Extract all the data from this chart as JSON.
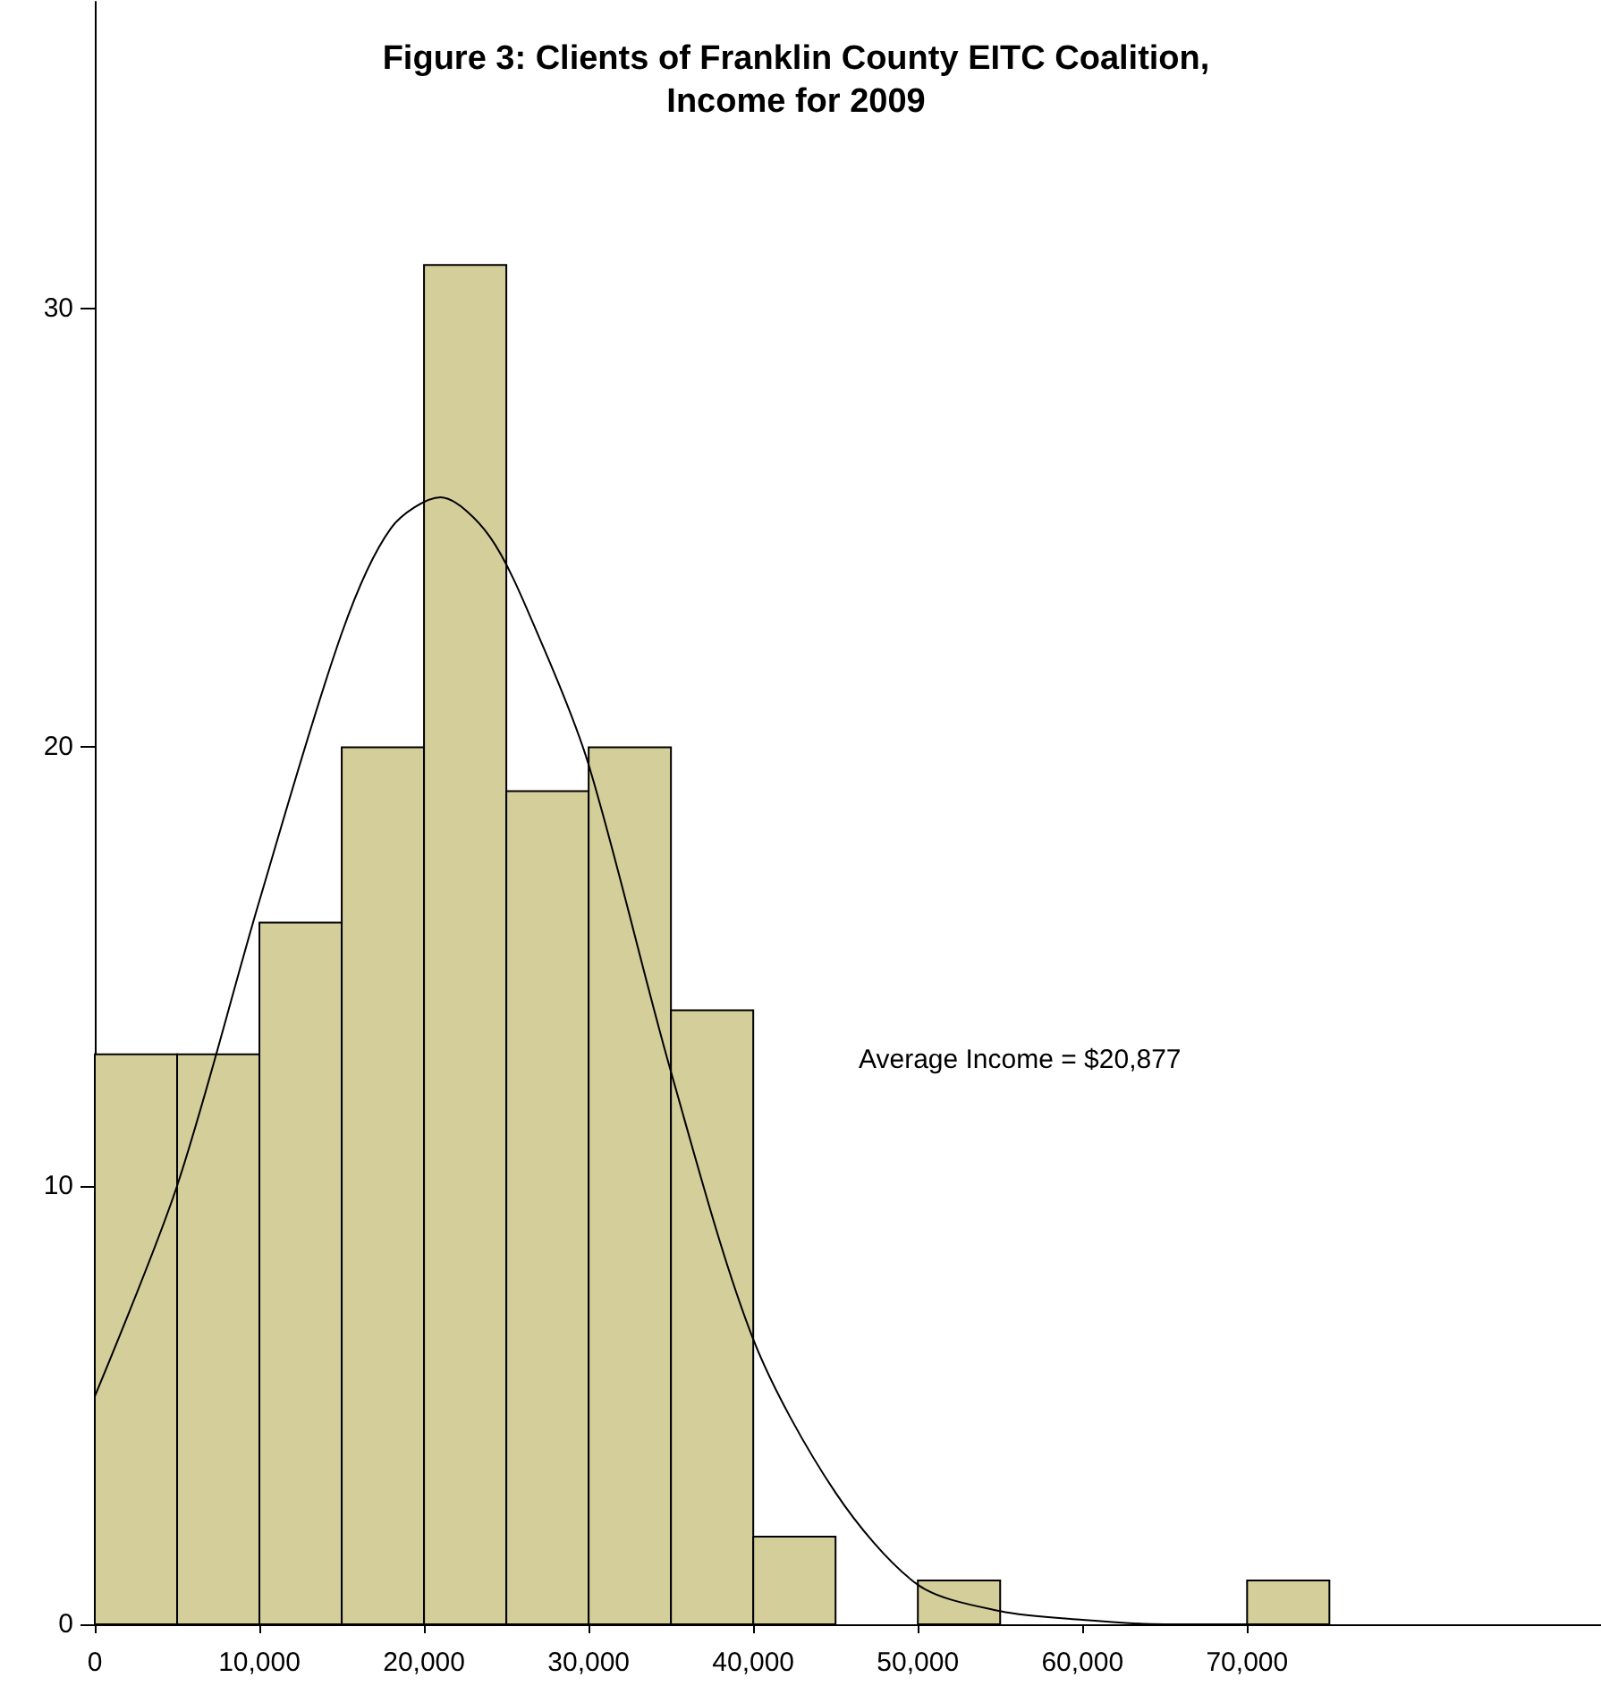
{
  "chart_data": {
    "type": "histogram",
    "title": "Figure 3: Clients of Franklin County EITC Coalition,\nIncome for 2009",
    "bins": [
      0,
      5000,
      10000,
      15000,
      20000,
      25000,
      30000,
      35000,
      40000,
      45000,
      50000,
      55000,
      60000,
      65000,
      70000,
      75000
    ],
    "values": [
      13,
      13,
      16,
      20,
      31,
      19,
      20,
      14,
      2,
      0,
      1,
      0,
      0,
      0,
      1
    ],
    "color": "#d3ce9a",
    "series": [
      {
        "type": "line",
        "color": "#000000",
        "x": [
          0,
          5000,
          10000,
          15000,
          18000,
          21000,
          24000,
          27000,
          30000,
          35000,
          40000,
          45000,
          50000,
          55000,
          60000,
          65000,
          70000
        ],
        "values": [
          5.2,
          10,
          16.5,
          22.6,
          25,
          25.7,
          24.8,
          22.5,
          19.6,
          12.6,
          6.5,
          3,
          0.9,
          0.3,
          0.1,
          0,
          0
        ]
      }
    ],
    "annotations": [
      "Average Income = $20,877"
    ],
    "xlim": [
      0,
      91500
    ],
    "xticks": [
      {
        "value": 0,
        "label": "0"
      },
      {
        "value": 10000,
        "label": "10,000"
      },
      {
        "value": 20000,
        "label": "20,000"
      },
      {
        "value": 30000,
        "label": "30,000"
      },
      {
        "value": 40000,
        "label": "40,000"
      },
      {
        "value": 50000,
        "label": "50,000"
      },
      {
        "value": 60000,
        "label": "60,000"
      },
      {
        "value": 70000,
        "label": "70,000"
      }
    ],
    "ylim": [
      0,
      37
    ],
    "yticks": [
      0,
      10,
      20,
      30
    ],
    "grid": false,
    "marker": "none",
    "line_style": "solid"
  }
}
